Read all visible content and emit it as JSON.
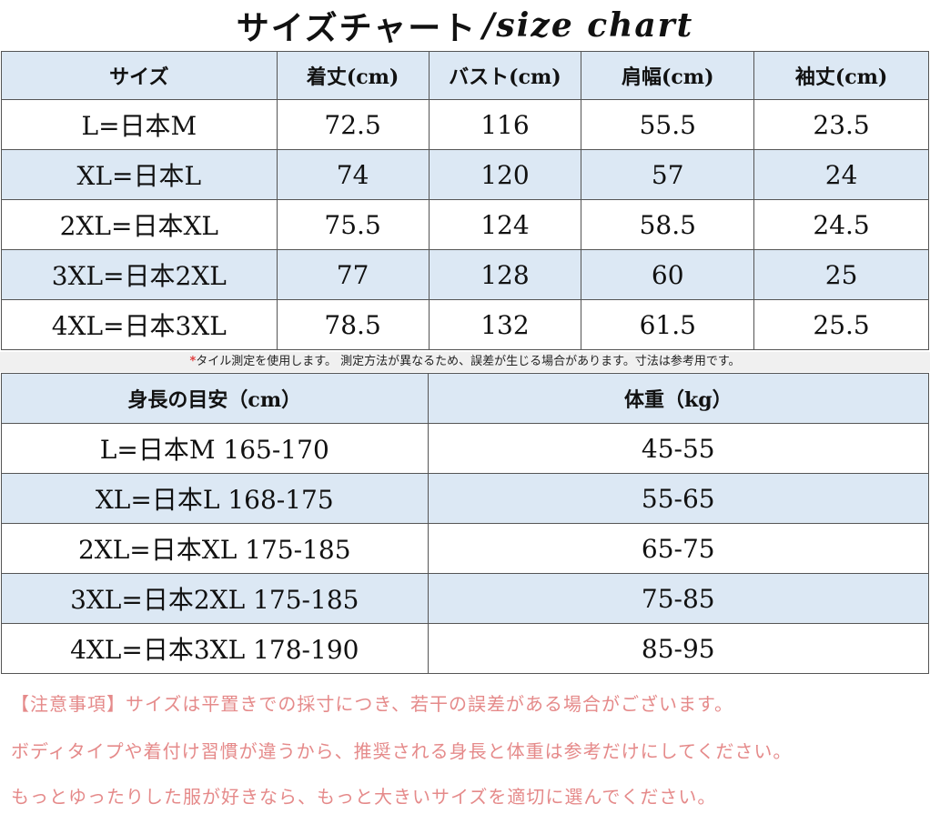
{
  "title": {
    "jp": "サイズチャート",
    "en": "/size chart"
  },
  "size_table": {
    "headers": [
      "サイズ",
      "着丈(cm)",
      "バスト(cm)",
      "肩幅(cm)",
      "袖丈(cm)"
    ],
    "rows": [
      [
        "L=日本M",
        "72.5",
        "116",
        "55.5",
        "23.5"
      ],
      [
        "XL=日本L",
        "74",
        "120",
        "57",
        "24"
      ],
      [
        "2XL=日本XL",
        "75.5",
        "124",
        "58.5",
        "24.5"
      ],
      [
        "3XL=日本2XL",
        "77",
        "128",
        "60",
        "25"
      ],
      [
        "4XL=日本3XL",
        "78.5",
        "132",
        "61.5",
        "25.5"
      ]
    ]
  },
  "note": {
    "mark": "*",
    "text": "タイル測定を使用します。 測定方法が異なるため、誤差が生じる場合があります。寸法は参考用です。"
  },
  "height_table": {
    "headers": [
      "身長の目安（cm）",
      "体重（kg）"
    ],
    "rows": [
      [
        "L=日本M 165-170",
        "45-55"
      ],
      [
        "XL=日本L 168-175",
        "55-65"
      ],
      [
        "2XL=日本XL 175-185",
        "65-75"
      ],
      [
        "3XL=日本2XL 175-185",
        "75-85"
      ],
      [
        "4XL=日本3XL 178-190",
        "85-95"
      ]
    ]
  },
  "caution": [
    "【注意事項】サイズは平置きでの採寸につき、若干の誤差がある場合がございます。",
    "ボディタイプや着付け習慣が違うから、推奨される身長と体重は参考だけにしてください。",
    "もっとゆったりした服が好きなら、もっと大きいサイズを適切に選んでください。"
  ]
}
